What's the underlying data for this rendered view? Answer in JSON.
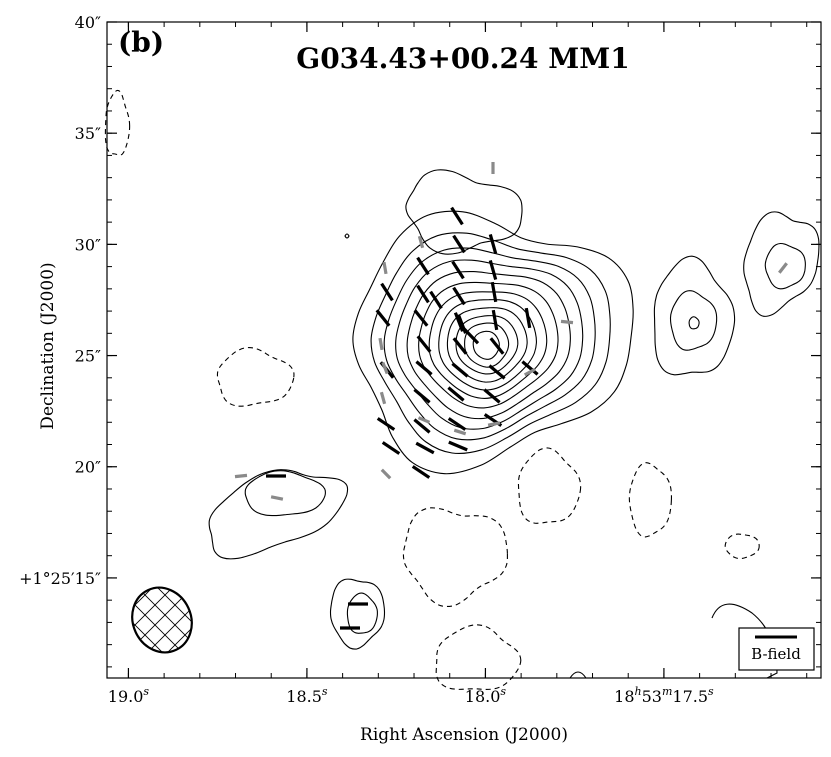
{
  "chart_data": {
    "type": "contour-map",
    "panel_label": "(b)",
    "title": "G034.43+00.24 MM1",
    "xlabel": "Right Ascension (J2000)",
    "ylabel": "Declination (J2000)",
    "x_ticks": [
      {
        "value": 19.0,
        "label": "19.0",
        "sup": "s",
        "prefix": ""
      },
      {
        "value": 18.5,
        "label": "18.5",
        "sup": "s",
        "prefix": ""
      },
      {
        "value": 18.0,
        "label": "18.0",
        "sup": "s",
        "prefix": ""
      },
      {
        "value": 17.5,
        "label": "18",
        "sup": "h",
        "mid": "53",
        "sup2": "m",
        "tail": "17.5",
        "sup3": "s",
        "prefix": ""
      }
    ],
    "y_ticks": [
      {
        "value": 40,
        "label": "40″"
      },
      {
        "value": 35,
        "label": "35″"
      },
      {
        "value": 30,
        "label": "30″"
      },
      {
        "value": 25,
        "label": "25″"
      },
      {
        "value": 20,
        "label": "20″"
      },
      {
        "value": 15,
        "label": "+1°25′15″"
      }
    ],
    "xlim": [
      19.06,
      17.06
    ],
    "ylim": [
      10.5,
      40
    ],
    "legend": {
      "label": "B-field",
      "placement": "bottom-right"
    },
    "beam": {
      "placement": "bottom-left",
      "hatch": "cross"
    },
    "peak": {
      "ra_s": 18.0,
      "dec_arcsec": 25.5
    },
    "contours_positive": [
      {
        "name": "main-core",
        "levels": 12
      },
      {
        "name": "east-blob"
      },
      {
        "name": "west-ring"
      },
      {
        "name": "far-west-ring"
      },
      {
        "name": "south-small"
      }
    ],
    "contours_negative": 8,
    "segments_strong": 40,
    "segments_weak": 15,
    "colors": {
      "strong": "#000000",
      "weak": "#8a8a8a",
      "contour": "#000000"
    }
  }
}
